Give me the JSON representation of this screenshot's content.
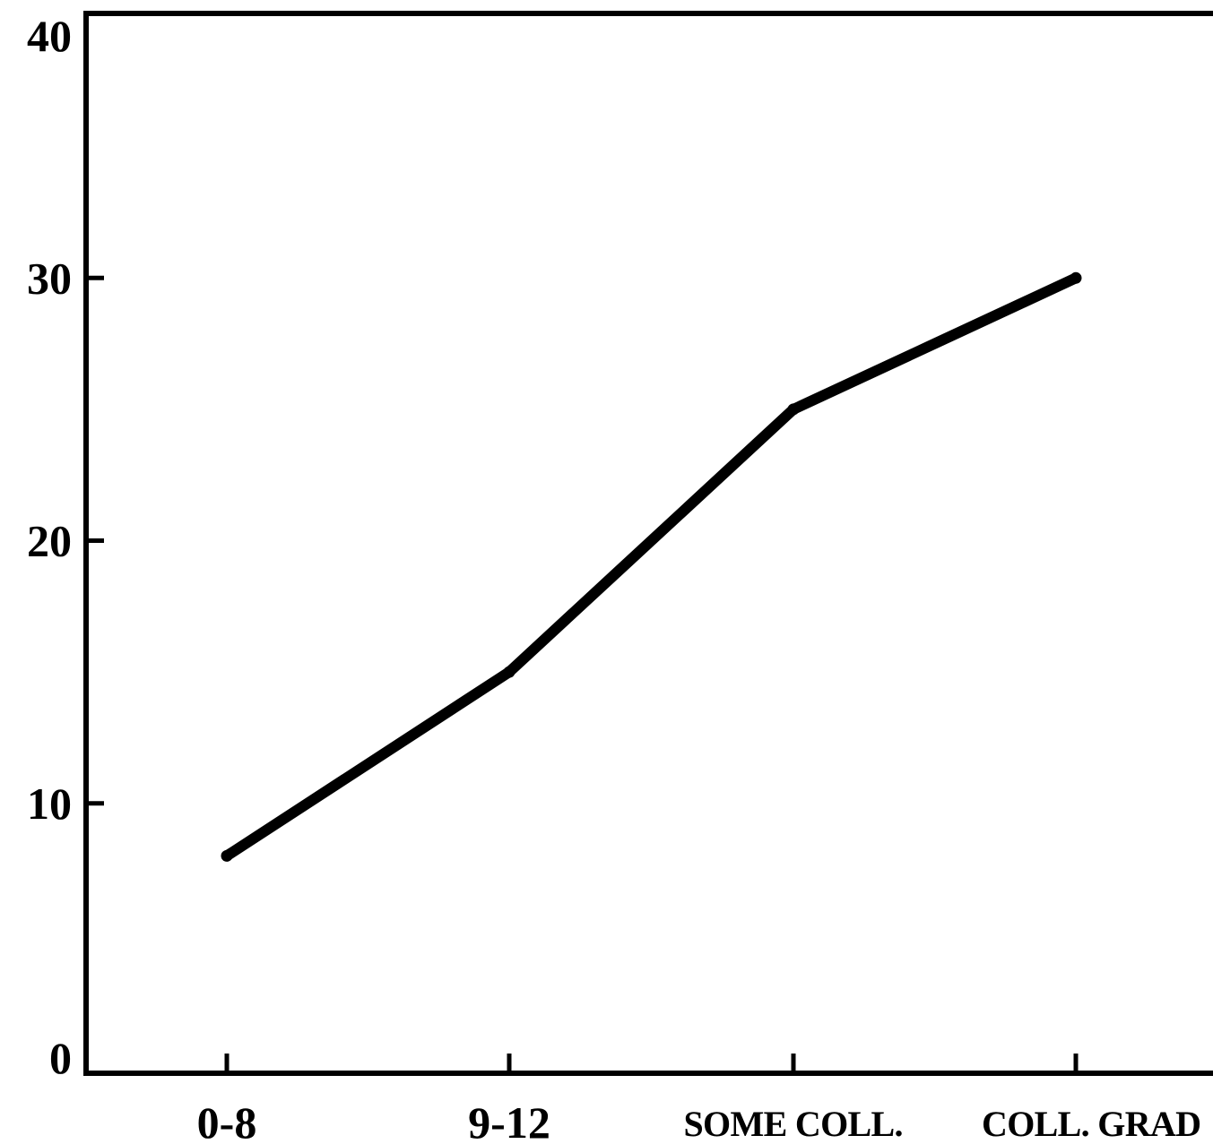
{
  "chart_data": {
    "type": "line",
    "title": "",
    "xlabel": "",
    "ylabel": "",
    "categories": [
      "0-8",
      "9-12",
      "SOME COLL.",
      "COLL. GRAD"
    ],
    "series": [
      {
        "values": [
          8,
          15,
          25,
          30
        ]
      }
    ],
    "ylim": [
      0,
      40
    ],
    "yticks": [
      0,
      10,
      20,
      30,
      40
    ],
    "ytick_labels": [
      "0",
      "10",
      "20",
      "30",
      "40"
    ],
    "grid": false,
    "legend": "none",
    "colors": {
      "line": "#000000",
      "axis": "#000000",
      "background": "#ffffff"
    }
  }
}
